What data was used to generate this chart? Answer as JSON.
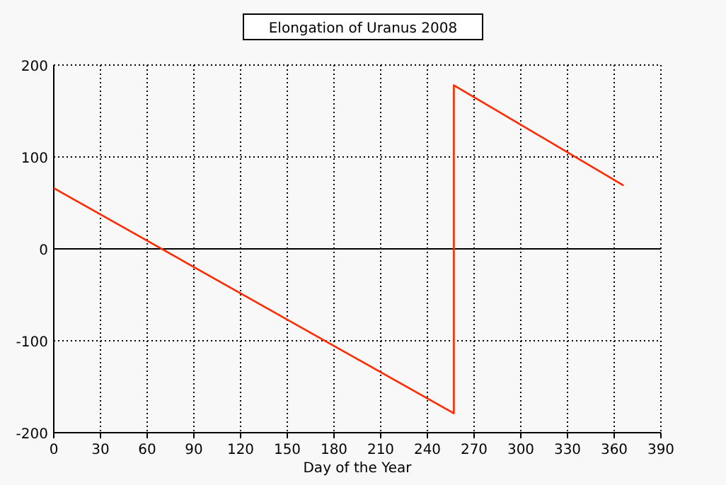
{
  "chart_data": {
    "type": "line",
    "title": "Elongation of Uranus 2008",
    "xlabel": "Day of the Year",
    "x": [
      0,
      257,
      257,
      366
    ],
    "series": [
      {
        "color": "#ff2a00",
        "values": [
          66,
          -179,
          178,
          69
        ]
      }
    ],
    "xlim": [
      0,
      390
    ],
    "xticks": [
      0,
      30,
      60,
      90,
      120,
      150,
      180,
      210,
      240,
      270,
      300,
      330,
      360,
      390
    ],
    "ylim": [
      -200,
      200
    ],
    "yticks": [
      -200,
      -100,
      0,
      100,
      200
    ],
    "grid": true,
    "ref_lines": [
      {
        "axis": "y",
        "value": 0,
        "color": "#000000",
        "line_style": "solid"
      }
    ],
    "marker": "none",
    "line_style": "solid"
  }
}
